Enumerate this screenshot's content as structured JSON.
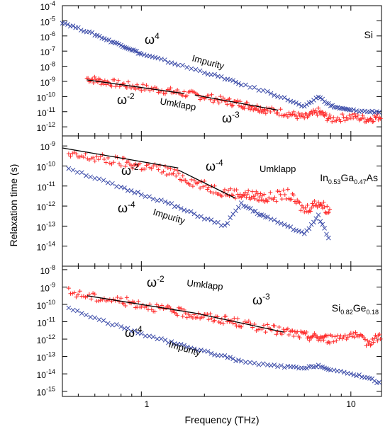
{
  "chart_data": {
    "type": "scatter",
    "xscale": "log",
    "yscale": "log",
    "xlabel": "Frequency (THz)",
    "ylabel": "Relaxation time (s)",
    "xlim": [
      0.42,
      14
    ],
    "x_ticks": [
      "1",
      "10"
    ],
    "colors": {
      "umklapp": "#ff2a2a",
      "impurity": "#3a4aa8",
      "fit": "#000000"
    },
    "panels": [
      {
        "material": "Si",
        "ylim": [
          -12.6,
          -4
        ],
        "y_ticks": [
          -12,
          -11,
          -10,
          -9,
          -8,
          -7,
          -6,
          -5,
          -4
        ],
        "fits": [
          {
            "label": "ω-2",
            "x": [
              0.55,
              1.6
            ],
            "y": [
              -8.9,
              -9.8
            ]
          },
          {
            "label": "ω-3",
            "x": [
              1.8,
              4.5
            ],
            "y": [
              -9.9,
              -10.9
            ]
          }
        ],
        "series": [
          {
            "name": "Umklapp",
            "marker": "plus",
            "x": [
              0.55,
              0.65,
              0.8,
              1.0,
              1.3,
              1.6,
              2.0,
              2.5,
              3.0,
              3.5,
              4.0,
              5.0,
              6.0,
              7.0,
              8.0,
              10.0,
              12.0,
              14.0
            ],
            "y": [
              -8.8,
              -9.0,
              -9.2,
              -9.4,
              -9.6,
              -9.8,
              -10.0,
              -10.3,
              -10.5,
              -10.7,
              -10.9,
              -11.1,
              -11.4,
              -11.0,
              -11.5,
              -11.3,
              -11.5,
              -11.3
            ]
          },
          {
            "name": "Impurity",
            "marker": "cross",
            "x": [
              0.42,
              0.5,
              0.6,
              0.7,
              0.8,
              0.9,
              1.0,
              1.2,
              1.5,
              2.0,
              2.5,
              3.0,
              4.0,
              5.0,
              6.0,
              7.0,
              8.0,
              9.0,
              10.0,
              12.0,
              14.0
            ],
            "y": [
              -5.1,
              -5.5,
              -5.9,
              -6.3,
              -6.6,
              -6.9,
              -7.2,
              -7.5,
              -7.9,
              -8.4,
              -8.8,
              -9.2,
              -9.7,
              -10.2,
              -10.7,
              -10.0,
              -10.6,
              -10.8,
              -10.9,
              -11.0,
              -11.0
            ]
          }
        ],
        "annotations": [
          "Impurity",
          "Umklapp",
          "ω-4",
          "ω-2",
          "ω-3"
        ]
      },
      {
        "material": "In0.53Ga0.47As",
        "ylim": [
          -15,
          -8.5
        ],
        "y_ticks": [
          -14,
          -13,
          -12,
          -11,
          -10,
          -9
        ],
        "fits": [
          {
            "label": "ω-2",
            "x": [
              0.42,
              1.5
            ],
            "y": [
              -9.1,
              -10.1
            ]
          },
          {
            "label": "ω-4",
            "x": [
              1.5,
              2.8
            ],
            "y": [
              -10.2,
              -11.6
            ]
          }
        ],
        "series": [
          {
            "name": "Umklapp",
            "marker": "plus",
            "x": [
              0.45,
              0.6,
              0.8,
              1.0,
              1.3,
              1.6,
              2.0,
              2.5,
              3.0,
              3.5,
              4.0,
              5.0,
              6.0,
              7.0,
              8.0
            ],
            "y": [
              -9.5,
              -9.6,
              -9.8,
              -10.0,
              -10.2,
              -10.6,
              -11.0,
              -11.3,
              -11.4,
              -11.5,
              -11.6,
              -11.4,
              -12.2,
              -11.8,
              -12.3
            ]
          },
          {
            "name": "Impurity",
            "marker": "cross",
            "x": [
              0.45,
              0.6,
              0.8,
              1.0,
              1.3,
              1.6,
              2.0,
              2.5,
              3.0,
              3.5,
              4.0,
              5.0,
              6.0,
              7.0,
              8.0
            ],
            "y": [
              -10.1,
              -10.6,
              -11.1,
              -11.4,
              -11.8,
              -12.2,
              -12.6,
              -13.0,
              -11.9,
              -12.3,
              -12.6,
              -13.0,
              -13.4,
              -12.5,
              -13.8
            ]
          }
        ],
        "annotations": [
          "Umklapp",
          "Impurity",
          "ω-2",
          "ω-4",
          "ω-4"
        ]
      },
      {
        "material": "Si0.82Ge0.18",
        "ylim": [
          -15.3,
          -7.8
        ],
        "y_ticks": [
          -15,
          -14,
          -13,
          -12,
          -11,
          -10,
          -9,
          -8
        ],
        "fits": [
          {
            "label": "ω-2",
            "x": [
              0.55,
              1.8
            ],
            "y": [
              -9.5,
              -10.5
            ]
          },
          {
            "label": "ω-3",
            "x": [
              1.8,
              4.8
            ],
            "y": [
              -10.5,
              -11.6
            ]
          }
        ],
        "series": [
          {
            "name": "Umklapp",
            "marker": "plus",
            "x": [
              0.45,
              0.6,
              0.8,
              1.0,
              1.3,
              1.6,
              2.0,
              2.5,
              3.0,
              4.0,
              5.0,
              6.0,
              7.0,
              8.0,
              10.0,
              12.0,
              14.0
            ],
            "y": [
              -9.3,
              -9.6,
              -9.8,
              -10.0,
              -10.3,
              -10.5,
              -10.7,
              -10.9,
              -11.1,
              -11.4,
              -11.6,
              -11.8,
              -11.9,
              -12.0,
              -11.7,
              -12.2,
              -11.8
            ]
          },
          {
            "name": "Impurity",
            "marker": "cross",
            "x": [
              0.45,
              0.6,
              0.8,
              1.0,
              1.3,
              1.6,
              2.0,
              2.5,
              3.0,
              4.0,
              5.0,
              6.0,
              7.0,
              8.0,
              10.0,
              12.0,
              14.0
            ],
            "y": [
              -10.2,
              -10.8,
              -11.3,
              -11.7,
              -12.1,
              -12.4,
              -12.7,
              -13.0,
              -13.3,
              -13.5,
              -13.6,
              -13.7,
              -13.5,
              -13.8,
              -14.0,
              -14.2,
              -14.6
            ]
          }
        ],
        "annotations": [
          "Umklapp",
          "Impurity",
          "ω-2",
          "ω-3",
          "ω-4"
        ]
      }
    ]
  }
}
